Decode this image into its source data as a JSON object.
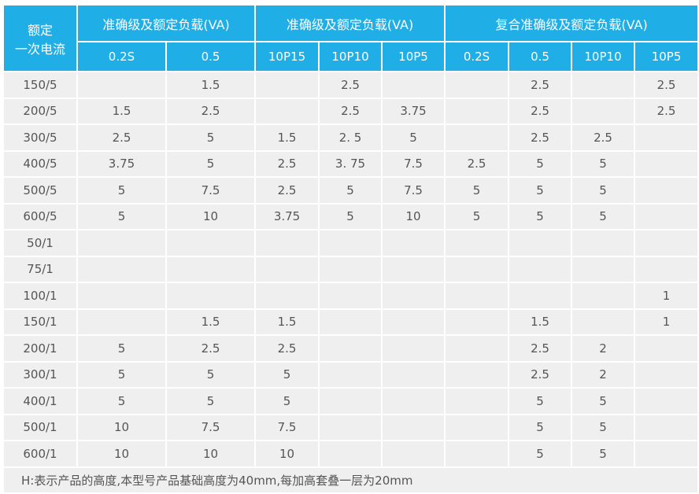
{
  "header": {
    "rated_current": [
      "额定",
      "一次电流"
    ],
    "groups": [
      "准确级及额定负载(VA)",
      "准确级及额定负载(VA)",
      "复合准确级及额定负载(VA)"
    ],
    "subcolumns": [
      "0.2S",
      "0.5",
      "10P15",
      "10P10",
      "10P5",
      "0.2S",
      "0.5",
      "10P10",
      "10P5"
    ]
  },
  "rows": [
    {
      "current": "150/5",
      "values": [
        "",
        "1.5",
        "",
        "2.5",
        "",
        "",
        "2.5",
        "",
        "2.5"
      ]
    },
    {
      "current": "200/5",
      "values": [
        "1.5",
        "2.5",
        "",
        "2.5",
        "3.75",
        "",
        "2.5",
        "",
        "2.5"
      ]
    },
    {
      "current": "300/5",
      "values": [
        "2.5",
        "5",
        "1.5",
        "2. 5",
        "5",
        "",
        "2.5",
        "2.5",
        ""
      ]
    },
    {
      "current": "400/5",
      "values": [
        "3.75",
        "5",
        "2.5",
        "3. 75",
        "7.5",
        "2.5",
        "5",
        "5",
        ""
      ]
    },
    {
      "current": "500/5",
      "values": [
        "5",
        "7.5",
        "2.5",
        "5",
        "7.5",
        "5",
        "5",
        "5",
        ""
      ]
    },
    {
      "current": "600/5",
      "values": [
        "5",
        "10",
        "3.75",
        "5",
        "10",
        "5",
        "5",
        "5",
        ""
      ]
    },
    {
      "current": "50/1",
      "values": [
        "",
        "",
        "",
        "",
        "",
        "",
        "",
        "",
        ""
      ]
    },
    {
      "current": "75/1",
      "values": [
        "",
        "",
        "",
        "",
        "",
        "",
        "",
        "",
        ""
      ]
    },
    {
      "current": "100/1",
      "values": [
        "",
        "",
        "",
        "",
        "",
        "",
        "",
        "",
        "1"
      ]
    },
    {
      "current": "150/1",
      "values": [
        "",
        "1.5",
        "1.5",
        "",
        "",
        "",
        "1.5",
        "",
        "1"
      ]
    },
    {
      "current": "200/1",
      "values": [
        "5",
        "2.5",
        "2.5",
        "",
        "",
        "",
        "2.5",
        "2",
        ""
      ]
    },
    {
      "current": "300/1",
      "values": [
        "5",
        "5",
        "5",
        "",
        "",
        "",
        "2.5",
        "2",
        ""
      ]
    },
    {
      "current": "400/1",
      "values": [
        "5",
        "5",
        "5",
        "",
        "",
        "",
        "5",
        "5",
        ""
      ]
    },
    {
      "current": "500/1",
      "values": [
        "10",
        "7.5",
        "7.5",
        "",
        "",
        "",
        "5",
        "5",
        ""
      ]
    },
    {
      "current": "600/1",
      "values": [
        "10",
        "10",
        "10",
        "",
        "",
        "",
        "5",
        "5",
        ""
      ]
    }
  ],
  "footnote": "H:表示产品的高度,本型号产品基础高度为40mm,每加高套叠一层为20mm",
  "colors": {
    "header_bg": "#1faee5",
    "cell_bg": "#efefef",
    "text": "#555555"
  }
}
